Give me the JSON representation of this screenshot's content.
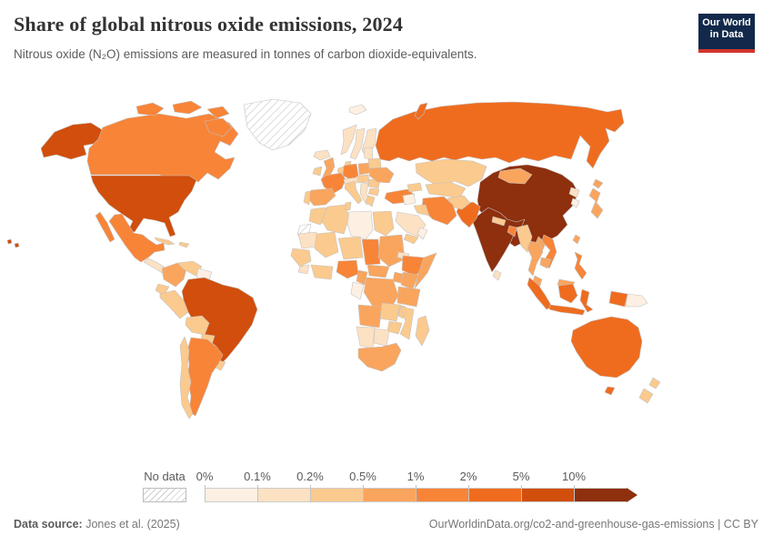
{
  "header": {
    "title": "Share of global nitrous oxide emissions, 2024",
    "subtitle": "Nitrous oxide (N₂O) emissions are measured in tonnes of carbon dioxide-equivalents.",
    "logo_line1": "Our World",
    "logo_line2": "in Data",
    "logo_bg": "#12294b",
    "logo_accent": "#d0342c"
  },
  "footer": {
    "source_label": "Data source:",
    "source_value": " Jones et al. (2025)",
    "credit": "OurWorldinData.org/co2-and-greenhouse-gas-emissions | CC BY"
  },
  "legend": {
    "no_data_label": "No data",
    "bins": [
      {
        "label": "0%",
        "color": "#fdf0e2"
      },
      {
        "label": "0.1%",
        "color": "#fce1c3"
      },
      {
        "label": "0.2%",
        "color": "#fbca8e"
      },
      {
        "label": "0.5%",
        "color": "#f9a55e"
      },
      {
        "label": "1%",
        "color": "#f88438"
      },
      {
        "label": "2%",
        "color": "#ef6c1f"
      },
      {
        "label": "5%",
        "color": "#d14e0c"
      },
      {
        "label": "10%",
        "color": "#8e2f0e"
      }
    ]
  },
  "chart_data": {
    "type": "choropleth-map",
    "title": "Share of global nitrous oxide emissions, 2024",
    "unit": "% of global N₂O emissions (tonnes CO₂-eq)",
    "legend_bins": [
      "0%",
      "0.1%",
      "0.2%",
      "0.5%",
      "1%",
      "2%",
      "5%",
      "10%"
    ],
    "bin_meaning": "value 1-8 = legend bin index (0%–0.1%, … , 10%+); 0 = no data",
    "countries": {
      "greenland": 0,
      "western-sahara": 0,
      "usa": 7,
      "canada": 5,
      "mexico": 5,
      "cuba": 3,
      "hispaniola": 3,
      "central-america": 2,
      "colombia": 4,
      "venezuela": 3,
      "guianas": 1,
      "ecuador": 3,
      "peru": 3,
      "brazil": 7,
      "bolivia": 3,
      "paraguay": 3,
      "chile": 3,
      "argentina": 5,
      "uruguay": 3,
      "iceland": 2,
      "united-kingdom": 4,
      "ireland": 3,
      "norway": 2,
      "sweden": 2,
      "finland": 2,
      "denmark": 3,
      "germany": 5,
      "france": 5,
      "spain": 4,
      "portugal": 3,
      "italy": 3,
      "benelux": 3,
      "alpine": 2,
      "poland": 4,
      "czech-hungary": 3,
      "balkans": 2,
      "greece": 3,
      "romania": 3,
      "bulgaria": 3,
      "baltics": 2,
      "belarus": 3,
      "ukraine": 4,
      "turkey": 5,
      "caucasus": 3,
      "svalbard": 1,
      "russia": 6,
      "kazakhstan": 3,
      "central-asia": 3,
      "mongolia": 4,
      "china": 8,
      "japan": 4,
      "north-korea": 2,
      "south-korea": 1,
      "taiwan": 4,
      "india": 8,
      "pakistan": 6,
      "afghanistan": 3,
      "iran": 5,
      "iraq": 3,
      "saudi-arabia": 2,
      "yemen": 3,
      "oman": 1,
      "levant": 1,
      "nepal": 3,
      "bangladesh": 5,
      "sri-lanka": 2,
      "myanmar": 3,
      "thailand": 4,
      "vietnam": 5,
      "laos": 4,
      "cambodia": 4,
      "malaysia": 4,
      "indonesia": 6,
      "papua-new-guinea": 1,
      "philippines": 5,
      "australia": 6,
      "new-zealand": 3,
      "morocco": 3,
      "algeria": 3,
      "tunisia": 3,
      "libya": 1,
      "egypt": 3,
      "mauritania": 2,
      "mali": 3,
      "niger": 3,
      "chad": 5,
      "sudan": 4,
      "eritrea": 2,
      "senegal": 3,
      "sierra-leone": 2,
      "ghana": 3,
      "nigeria": 5,
      "cameroon": 4,
      "central-african-republic": 4,
      "ethiopia": 5,
      "somalia": 4,
      "kenya": 4,
      "uganda": 4,
      "drc": 4,
      "gabon-congo": 1,
      "tanzania": 4,
      "angola": 4,
      "zambia": 3,
      "malawi": 3,
      "mozambique": 3,
      "zimbabwe": 3,
      "namibia": 2,
      "botswana": 2,
      "south-africa": 4,
      "madagascar": 3
    }
  }
}
